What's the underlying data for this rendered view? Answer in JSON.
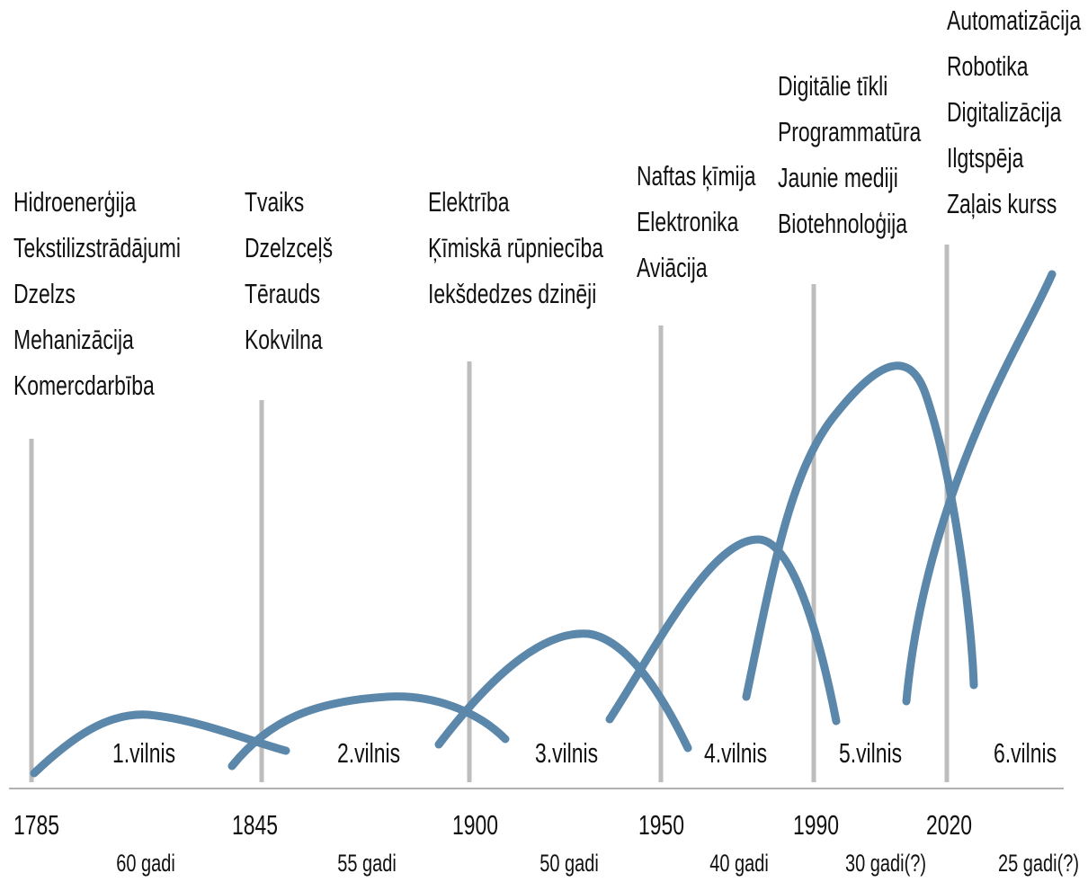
{
  "waves": [
    {
      "label": "1.vilnis",
      "year": "1785",
      "duration": "60 gadi",
      "technologies": [
        "Hidroenerģija",
        "Tekstilizstrādājumi",
        "Dzelzs",
        "Mehanizācija",
        "Komercdarbība"
      ]
    },
    {
      "label": "2.vilnis",
      "year": "1845",
      "duration": "55 gadi",
      "technologies": [
        "Tvaiks",
        "Dzelzceļš",
        "Tērauds",
        "Kokvilna"
      ]
    },
    {
      "label": "3.vilnis",
      "year": "1900",
      "duration": "50 gadi",
      "technologies": [
        "Elektrība",
        "Ķīmiskā rūpniecība",
        "Iekšdedzes dzinēji"
      ]
    },
    {
      "label": "4.vilnis",
      "year": "1950",
      "duration": "40 gadi",
      "technologies": [
        "Naftas ķīmija",
        "Elektronika",
        "Aviācija"
      ]
    },
    {
      "label": "5.vilnis",
      "year": "1990",
      "duration": "30 gadi(?)",
      "technologies": [
        "Digitālie tīkli",
        "Programmatūra",
        "Jaunie mediji",
        "Biotehnoloģija"
      ]
    },
    {
      "label": "6.vilnis",
      "year": "2020",
      "duration": "25 gadi(?)",
      "technologies": [
        "Automatizācija",
        "Robotika",
        "Digitalizācija",
        "Ilgtspēja",
        "Zaļais kurss"
      ]
    }
  ]
}
